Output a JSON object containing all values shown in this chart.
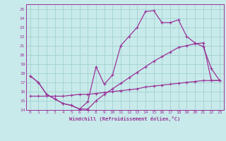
{
  "xlabel": "Windchill (Refroidissement éolien,°C)",
  "bg_color": "#c8eaea",
  "grid_color": "#a8d4d4",
  "line_color": "#993399",
  "ylim": [
    14,
    25.5
  ],
  "xlim": [
    -0.5,
    23.5
  ],
  "yticks": [
    14,
    15,
    16,
    17,
    18,
    19,
    20,
    21,
    22,
    23,
    24,
    25
  ],
  "xticks": [
    0,
    1,
    2,
    3,
    4,
    5,
    6,
    7,
    8,
    9,
    10,
    11,
    12,
    13,
    14,
    15,
    16,
    17,
    18,
    19,
    20,
    21,
    22,
    23
  ],
  "curve1_x": [
    0,
    1,
    2,
    3,
    4,
    5,
    6,
    7,
    8,
    9,
    10,
    11,
    12,
    13,
    14,
    15,
    16,
    17,
    18,
    19,
    20,
    21,
    22,
    23
  ],
  "curve1_y": [
    17.7,
    17.0,
    15.7,
    15.2,
    14.7,
    14.5,
    14.1,
    14.9,
    18.7,
    16.8,
    17.8,
    21.0,
    22.0,
    23.0,
    24.7,
    24.8,
    23.5,
    23.5,
    23.8,
    22.0,
    21.3,
    20.9,
    18.5,
    17.2
  ],
  "curve2_x": [
    0,
    1,
    2,
    3,
    4,
    5,
    6,
    7,
    8,
    9,
    10,
    11,
    12,
    13,
    14,
    15,
    16,
    17,
    18,
    19,
    20,
    21,
    22,
    23
  ],
  "curve2_y": [
    17.7,
    17.0,
    15.7,
    15.2,
    14.7,
    14.5,
    14.1,
    14.1,
    15.0,
    15.7,
    16.3,
    16.9,
    17.5,
    18.1,
    18.7,
    19.3,
    19.8,
    20.3,
    20.8,
    21.0,
    21.2,
    21.3,
    17.2,
    17.2
  ],
  "curve3_x": [
    0,
    1,
    2,
    3,
    4,
    5,
    6,
    7,
    8,
    9,
    10,
    11,
    12,
    13,
    14,
    15,
    16,
    17,
    18,
    19,
    20,
    21,
    22,
    23
  ],
  "curve3_y": [
    15.5,
    15.5,
    15.5,
    15.5,
    15.5,
    15.6,
    15.7,
    15.7,
    15.8,
    15.9,
    16.0,
    16.1,
    16.2,
    16.3,
    16.5,
    16.6,
    16.7,
    16.8,
    16.9,
    17.0,
    17.1,
    17.2,
    17.2,
    17.2
  ],
  "font_name": "monospace"
}
